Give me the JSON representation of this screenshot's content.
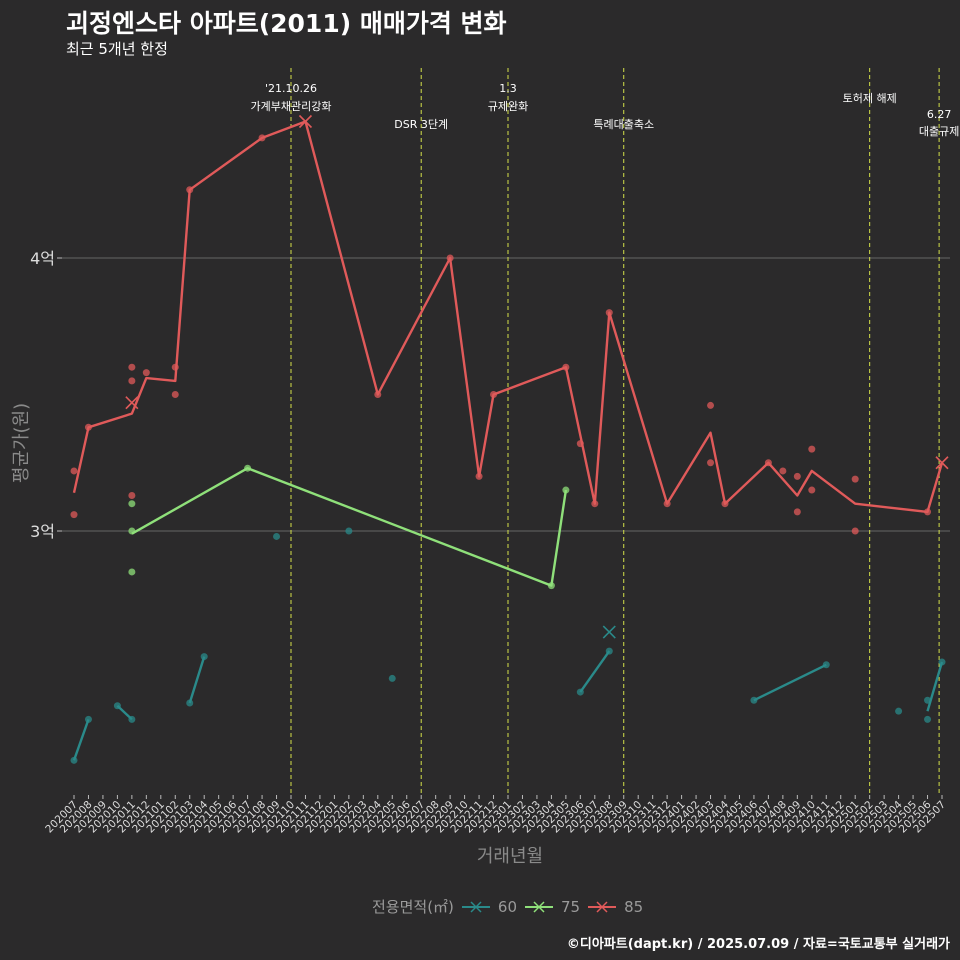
{
  "title": "괴정엔스타 아파트(2011) 매매가격 변화",
  "subtitle": "최근 5개년 한정",
  "caption": "©디아파트(dapt.kr) / 2025.07.09 / 자료=국토교통부 실거래가",
  "colors": {
    "s60": "#2a8a8a",
    "s75": "#8fe07a",
    "s85": "#e05a5a",
    "vline": "#d4e04a",
    "grid": "#5a5a5a",
    "bg": "#2b2a2b"
  },
  "chart_data": {
    "type": "line",
    "xlabel": "거래년월",
    "ylabel": "평균가(원)",
    "ylim": [
      2.0,
      4.9
    ],
    "yticks": [
      {
        "value": 3.0,
        "label": "3억"
      },
      {
        "value": 4.0,
        "label": "4억"
      }
    ],
    "x_ticks": [
      "202007",
      "202008",
      "202009",
      "202010",
      "202011",
      "202012",
      "202101",
      "202102",
      "202103",
      "202104",
      "202105",
      "202106",
      "202107",
      "202108",
      "202109",
      "202110",
      "202111",
      "202112",
      "202201",
      "202202",
      "202203",
      "202204",
      "202205",
      "202206",
      "202207",
      "202208",
      "202209",
      "202210",
      "202211",
      "202212",
      "202301",
      "202302",
      "202303",
      "202304",
      "202305",
      "202306",
      "202307",
      "202308",
      "202309",
      "202310",
      "202311",
      "202312",
      "202401",
      "202402",
      "202403",
      "202404",
      "202405",
      "202406",
      "202407",
      "202408",
      "202409",
      "202410",
      "202411",
      "202412",
      "202501",
      "202502",
      "202503",
      "202504",
      "202505",
      "202506",
      "202507"
    ],
    "legend_title": "전용면적(㎡)",
    "annotations": [
      {
        "x": 15.0,
        "lines": [
          "'21.10.26",
          "가계부채관리강화"
        ]
      },
      {
        "x": 24.0,
        "lines": [
          "DSR 3단계"
        ]
      },
      {
        "x": 30.0,
        "lines": [
          "1.3",
          "규제완화"
        ]
      },
      {
        "x": 38.0,
        "lines": [
          "특례대출축소"
        ]
      },
      {
        "x": 55.0,
        "lines": [
          "토허제 해제"
        ]
      },
      {
        "x": 59.8,
        "lines": [
          "6.27",
          "대출규제"
        ]
      }
    ],
    "series": [
      {
        "name": "60",
        "color_key": "s60",
        "line_segments": [
          [
            [
              0,
              2.16
            ],
            [
              1,
              2.31
            ]
          ],
          [
            [
              3,
              2.36
            ],
            [
              4,
              2.31
            ]
          ],
          [
            [
              8,
              2.37
            ],
            [
              9,
              2.54
            ]
          ],
          [
            [
              35,
              2.41
            ],
            [
              37,
              2.56
            ]
          ],
          [
            [
              47,
              2.38
            ],
            [
              52,
              2.51
            ]
          ],
          [
            [
              59,
              2.34
            ],
            [
              60,
              2.52
            ]
          ]
        ],
        "points": [
          [
            0,
            2.16
          ],
          [
            1,
            2.31
          ],
          [
            3,
            2.36
          ],
          [
            4,
            2.31
          ],
          [
            8,
            2.37
          ],
          [
            9,
            2.54
          ],
          [
            14,
            2.98
          ],
          [
            19,
            3.0
          ],
          [
            22,
            2.46
          ],
          [
            35,
            2.41
          ],
          [
            37,
            2.56
          ],
          [
            47,
            2.38
          ],
          [
            52,
            2.51
          ],
          [
            57,
            2.34
          ],
          [
            59,
            2.31
          ],
          [
            59,
            2.38
          ],
          [
            60,
            2.52
          ]
        ]
      },
      {
        "name": "75",
        "color_key": "s75",
        "line_segments": [
          [
            [
              4,
              2.99
            ],
            [
              12,
              3.23
            ],
            [
              33,
              2.8
            ],
            [
              34,
              3.15
            ]
          ]
        ],
        "points": [
          [
            4,
            3.0
          ],
          [
            4,
            3.1
          ],
          [
            4,
            2.85
          ],
          [
            12,
            3.23
          ],
          [
            33,
            2.8
          ],
          [
            34,
            3.15
          ]
        ]
      },
      {
        "name": "85",
        "color_key": "s85",
        "line_segments": [
          [
            [
              0,
              3.14
            ],
            [
              1,
              3.38
            ],
            [
              4,
              3.43
            ],
            [
              5,
              3.56
            ],
            [
              7,
              3.55
            ],
            [
              8,
              4.25
            ],
            [
              13,
              4.44
            ],
            [
              16,
              4.5
            ],
            [
              21,
              3.5
            ],
            [
              26,
              4.0
            ],
            [
              28,
              3.2
            ],
            [
              29,
              3.5
            ],
            [
              34,
              3.6
            ],
            [
              36,
              3.1
            ],
            [
              37,
              3.8
            ],
            [
              41,
              3.1
            ],
            [
              44,
              3.36
            ],
            [
              45,
              3.1
            ],
            [
              48,
              3.25
            ],
            [
              50,
              3.13
            ],
            [
              51,
              3.22
            ],
            [
              54,
              3.1
            ],
            [
              59,
              3.07
            ],
            [
              60,
              3.25
            ]
          ]
        ],
        "points": [
          [
            0,
            3.22
          ],
          [
            0,
            3.06
          ],
          [
            1,
            3.38
          ],
          [
            4,
            3.6
          ],
          [
            4,
            3.55
          ],
          [
            4,
            3.13
          ],
          [
            5,
            3.58
          ],
          [
            7,
            3.6
          ],
          [
            7,
            3.5
          ],
          [
            8,
            4.25
          ],
          [
            13,
            4.44
          ],
          [
            21,
            3.5
          ],
          [
            26,
            4.0
          ],
          [
            28,
            3.2
          ],
          [
            29,
            3.5
          ],
          [
            34,
            3.6
          ],
          [
            35,
            3.32
          ],
          [
            36,
            3.1
          ],
          [
            37,
            3.8
          ],
          [
            41,
            3.1
          ],
          [
            44,
            3.46
          ],
          [
            44,
            3.25
          ],
          [
            45,
            3.1
          ],
          [
            48,
            3.25
          ],
          [
            49,
            3.22
          ],
          [
            50,
            3.2
          ],
          [
            50,
            3.07
          ],
          [
            51,
            3.3
          ],
          [
            51,
            3.15
          ],
          [
            54,
            3.19
          ],
          [
            54,
            3.0
          ],
          [
            59,
            3.07
          ]
        ]
      }
    ],
    "markers_x": [
      [
        4,
        3.47,
        "s85"
      ],
      [
        16,
        4.5,
        "s85"
      ],
      [
        37,
        2.63,
        "s60"
      ],
      [
        60,
        3.25,
        "s85"
      ]
    ]
  }
}
